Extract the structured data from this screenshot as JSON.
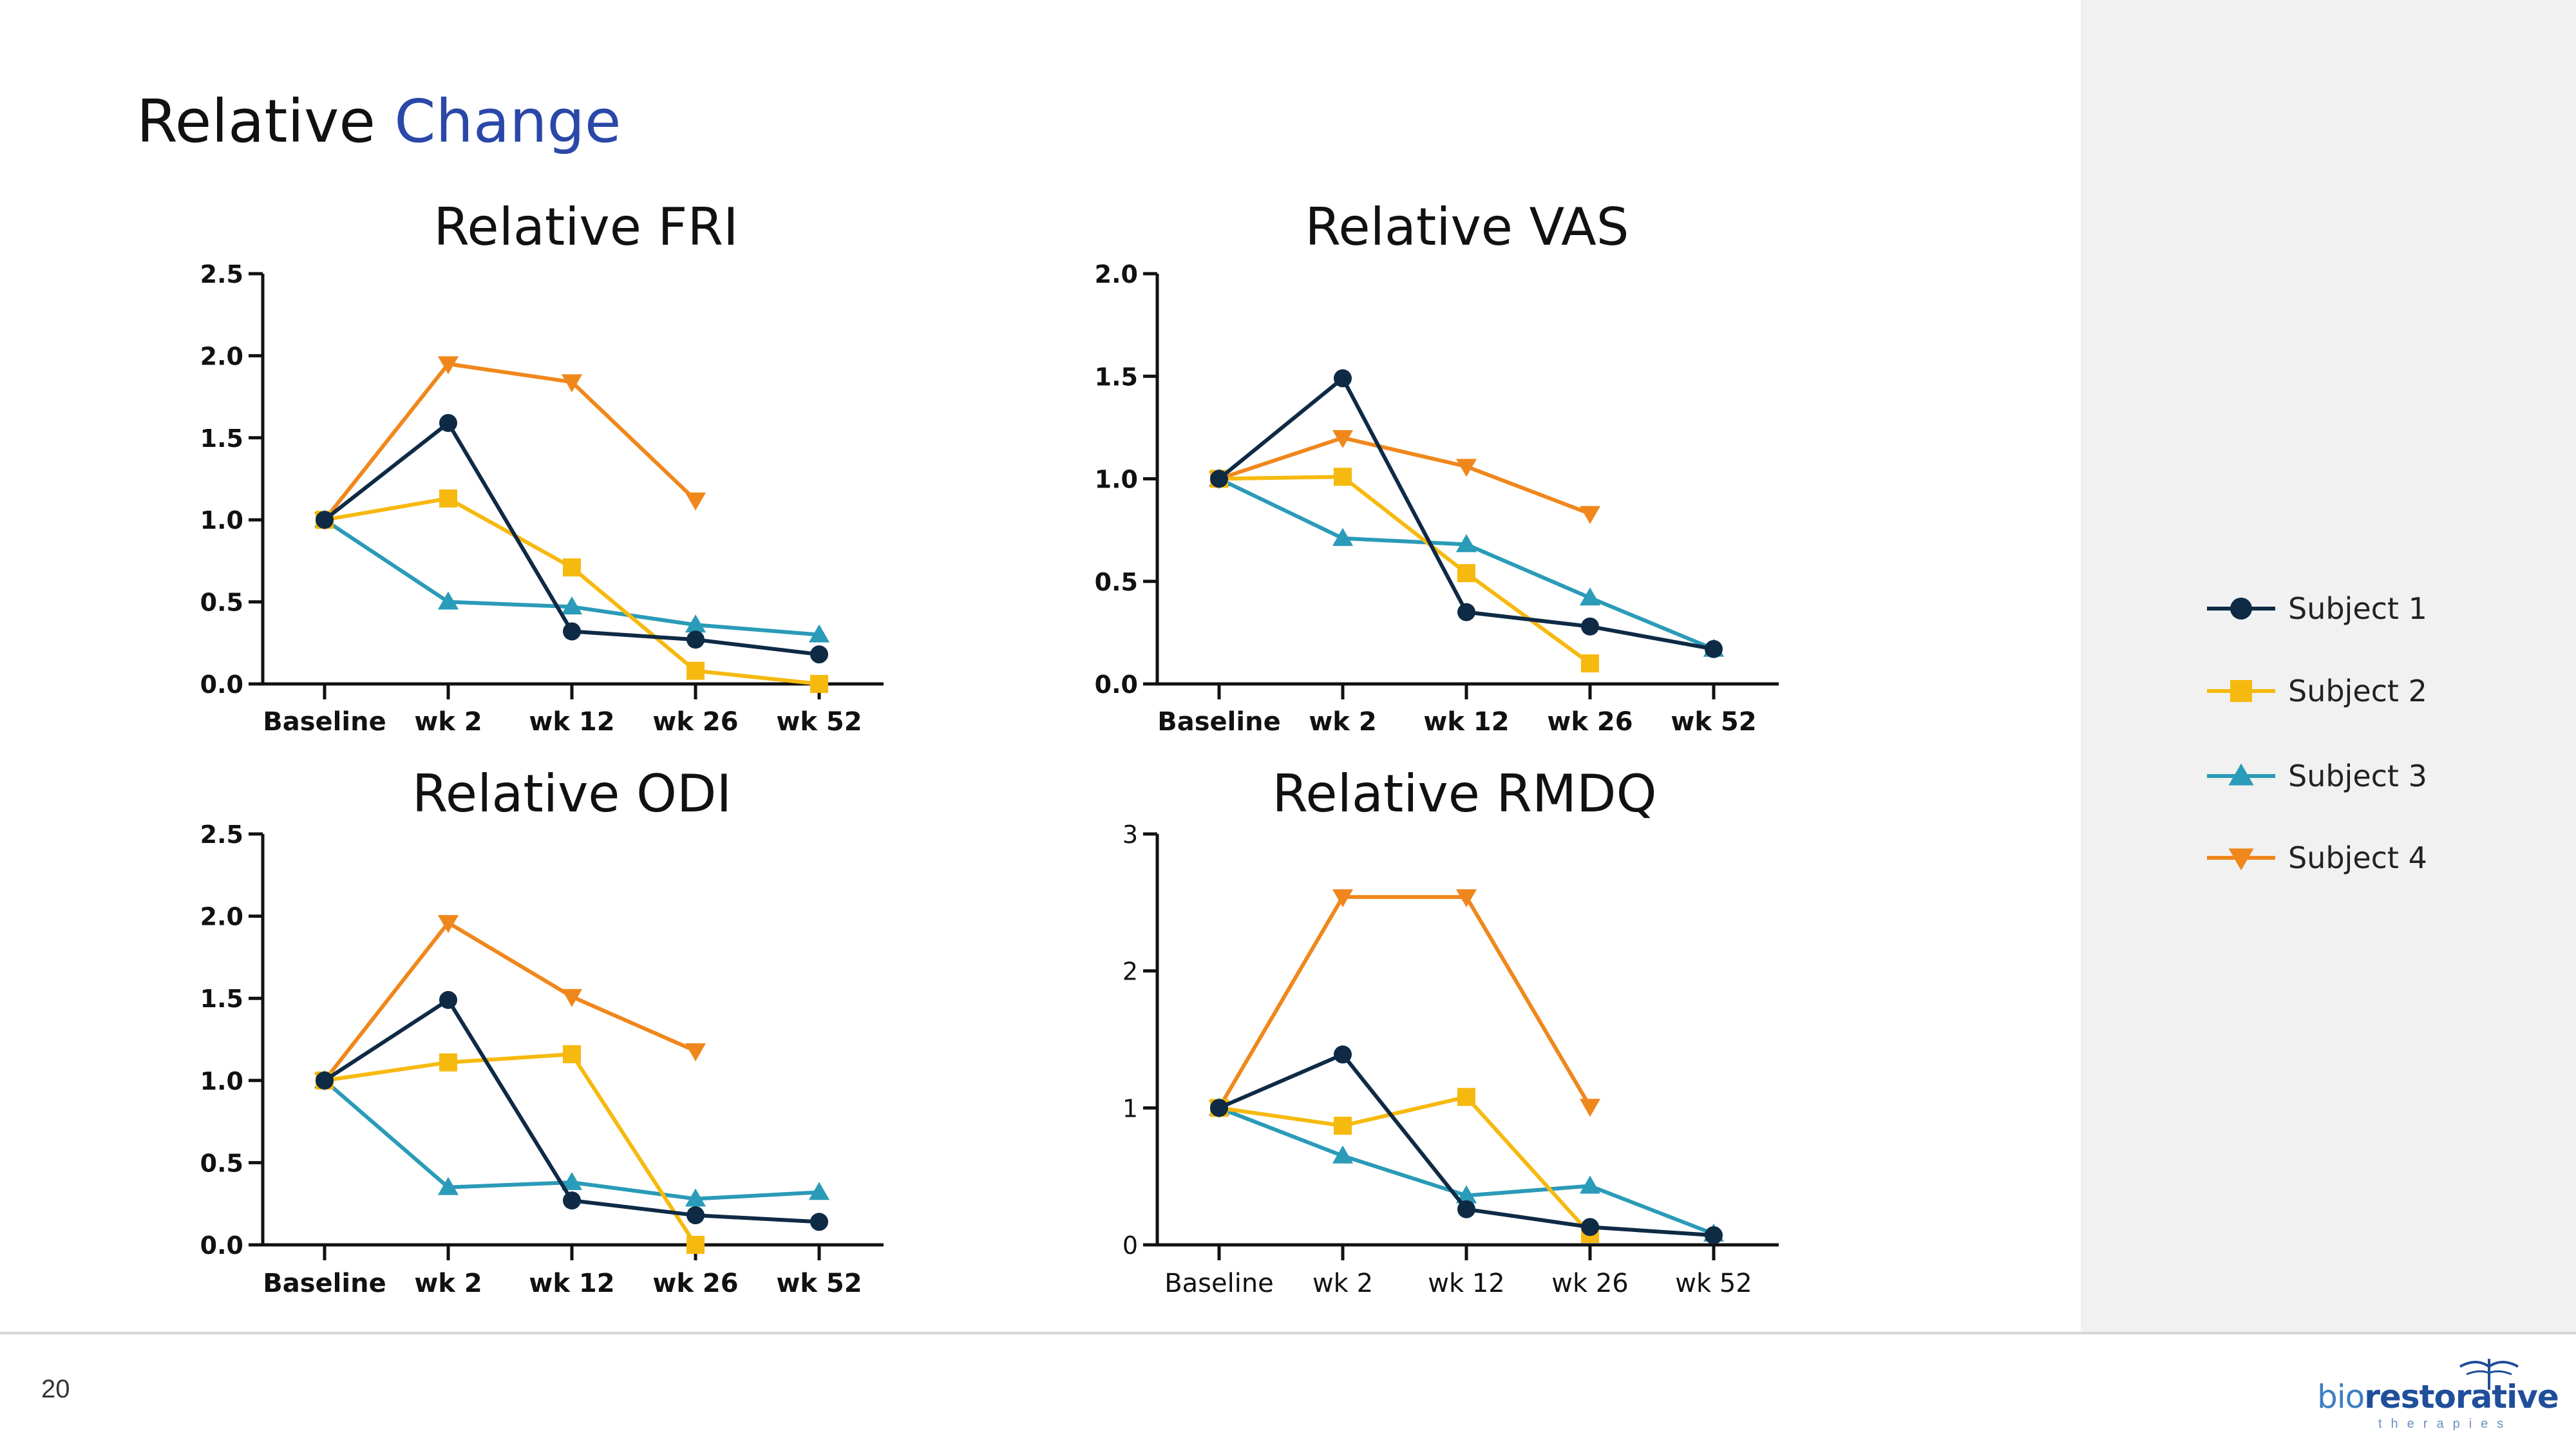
{
  "slide": {
    "title_plain": "Relative",
    "title_accent": "Change",
    "page_number": "20"
  },
  "colors": {
    "accent": "#2b48a8",
    "subject1": "#0e2a45",
    "subject2": "#f6b90f",
    "subject3": "#2a9bb8",
    "subject4": "#f0871c"
  },
  "legend": [
    {
      "label": "Subject 1",
      "marker": "circle",
      "color": "#0e2a45"
    },
    {
      "label": "Subject 2",
      "marker": "square",
      "color": "#f6b90f"
    },
    {
      "label": "Subject 3",
      "marker": "triangle-up",
      "color": "#2a9bb8"
    },
    {
      "label": "Subject 4",
      "marker": "triangle-down",
      "color": "#f0871c"
    }
  ],
  "logo": {
    "prefix": "bio",
    "name": "restorative",
    "sub": "therapies"
  },
  "chart_data": [
    {
      "type": "line",
      "title": "Relative FRI",
      "categories": [
        "Baseline",
        "wk 2",
        "wk 12",
        "wk 26",
        "wk 52"
      ],
      "ylim": [
        0,
        2.5
      ],
      "yticks": [
        0.0,
        0.5,
        1.0,
        1.5,
        2.0,
        2.5
      ],
      "tick_format": "0.0",
      "bold_ticks": true,
      "series": [
        {
          "name": "Subject 1",
          "values": [
            1.0,
            1.59,
            0.32,
            0.27,
            0.18
          ]
        },
        {
          "name": "Subject 2",
          "values": [
            1.0,
            1.13,
            0.71,
            0.08,
            0.0
          ]
        },
        {
          "name": "Subject 3",
          "values": [
            1.0,
            0.5,
            0.47,
            0.36,
            0.3
          ]
        },
        {
          "name": "Subject 4",
          "values": [
            1.0,
            1.95,
            1.84,
            1.12,
            null
          ]
        }
      ]
    },
    {
      "type": "line",
      "title": "Relative VAS",
      "categories": [
        "Baseline",
        "wk 2",
        "wk 12",
        "wk 26",
        "wk 52"
      ],
      "ylim": [
        0,
        2.0
      ],
      "yticks": [
        0.0,
        0.5,
        1.0,
        1.5,
        2.0
      ],
      "tick_format": "0.0",
      "bold_ticks": true,
      "series": [
        {
          "name": "Subject 1",
          "values": [
            1.0,
            1.49,
            0.35,
            0.28,
            0.17
          ]
        },
        {
          "name": "Subject 2",
          "values": [
            1.0,
            1.01,
            0.54,
            0.1,
            null
          ]
        },
        {
          "name": "Subject 3",
          "values": [
            1.0,
            0.71,
            0.68,
            0.42,
            0.17
          ]
        },
        {
          "name": "Subject 4",
          "values": [
            1.0,
            1.2,
            1.06,
            0.83,
            null
          ]
        }
      ]
    },
    {
      "type": "line",
      "title": "Relative ODI",
      "categories": [
        "Baseline",
        "wk 2",
        "wk 12",
        "wk 26",
        "wk 52"
      ],
      "ylim": [
        0,
        2.5
      ],
      "yticks": [
        0.0,
        0.5,
        1.0,
        1.5,
        2.0,
        2.5
      ],
      "tick_format": "0.0",
      "bold_ticks": true,
      "series": [
        {
          "name": "Subject 1",
          "values": [
            1.0,
            1.49,
            0.27,
            0.18,
            0.14
          ]
        },
        {
          "name": "Subject 2",
          "values": [
            1.0,
            1.11,
            1.16,
            0.0,
            null
          ]
        },
        {
          "name": "Subject 3",
          "values": [
            1.0,
            0.35,
            0.38,
            0.28,
            0.32
          ]
        },
        {
          "name": "Subject 4",
          "values": [
            1.0,
            1.96,
            1.51,
            1.18,
            null
          ]
        }
      ]
    },
    {
      "type": "line",
      "title": "Relative RMDQ",
      "categories": [
        "Baseline",
        "wk 2",
        "wk 12",
        "wk 26",
        "wk 52"
      ],
      "ylim": [
        0,
        3
      ],
      "yticks": [
        0,
        1,
        2,
        3
      ],
      "tick_format": "0",
      "bold_ticks": false,
      "series": [
        {
          "name": "Subject 1",
          "values": [
            1.0,
            1.39,
            0.26,
            0.13,
            0.07
          ]
        },
        {
          "name": "Subject 2",
          "values": [
            1.0,
            0.87,
            1.08,
            0.08,
            null
          ]
        },
        {
          "name": "Subject 3",
          "values": [
            1.0,
            0.65,
            0.36,
            0.43,
            0.08
          ]
        },
        {
          "name": "Subject 4",
          "values": [
            1.0,
            2.54,
            2.54,
            1.01,
            null
          ]
        }
      ]
    }
  ]
}
